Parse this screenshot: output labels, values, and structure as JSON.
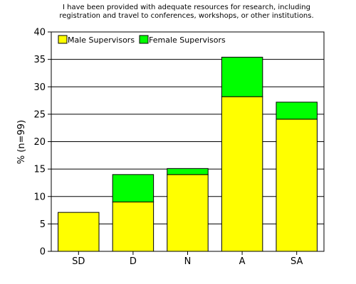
{
  "chart_data": {
    "type": "bar",
    "stacked": true,
    "title_lines": [
      "I have been provided with adequate resources for research, including",
      "registration and travel to conferences, workshops, or other institutions."
    ],
    "categories": [
      "SD",
      "D",
      "N",
      "A",
      "SA"
    ],
    "series": [
      {
        "name": "Male Supervisors",
        "color": "#ffff00",
        "values": [
          7.1,
          9.0,
          14.0,
          28.2,
          24.1
        ]
      },
      {
        "name": "Female Supervisors",
        "color": "#00ff00",
        "values": [
          0.0,
          5.0,
          1.1,
          7.2,
          3.1
        ]
      }
    ],
    "ylabel": "% (n=99)",
    "xlabel": "",
    "ylim": [
      0,
      40
    ],
    "yticks": [
      0,
      5,
      10,
      15,
      20,
      25,
      30,
      35,
      40
    ],
    "grid": true,
    "legend_position": "top-left"
  }
}
